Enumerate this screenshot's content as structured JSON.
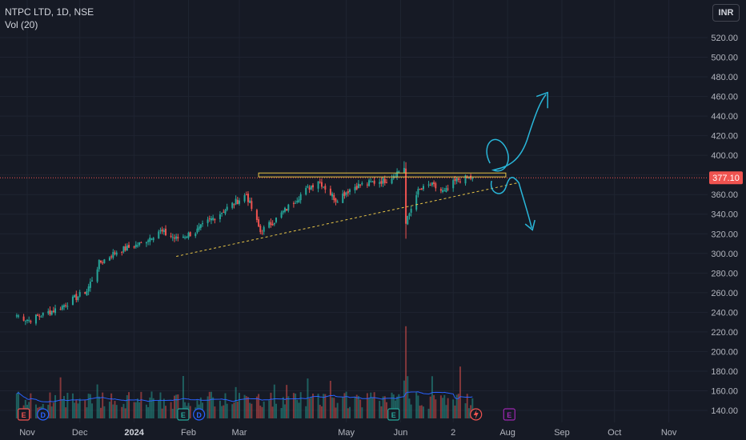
{
  "header": {
    "symbol": "NTPC LTD, 1D, NSE",
    "indicator": "Vol (20)"
  },
  "currency": "INR",
  "last_price": "377.10",
  "colors": {
    "background": "#161a25",
    "grid": "#1f2431",
    "up": "#26a69a",
    "down": "#ef5350",
    "resistance_box": "#e8c547",
    "trendline": "#e8c547",
    "arrows": "#29b6d9",
    "price_line": "#ef5350",
    "volume_ma": "#2962ff"
  },
  "icons": [
    "currency-settings-icon",
    "earnings-e-icon",
    "dividend-d-icon",
    "flash-event-icon"
  ],
  "chart_data": {
    "type": "candlestick",
    "title": "NTPC LTD, 1D, NSE",
    "y_axis": {
      "ticks": [
        "520.00",
        "500.00",
        "480.00",
        "460.00",
        "440.00",
        "420.00",
        "400.00",
        "380.00",
        "360.00",
        "340.00",
        "320.00",
        "300.00",
        "280.00",
        "260.00",
        "240.00",
        "220.00",
        "200.00",
        "180.00",
        "160.00",
        "140.00"
      ],
      "range": [
        135,
        540
      ]
    },
    "x_axis": {
      "ticks": [
        "Nov",
        "Dec",
        "2024",
        "Feb",
        "Mar",
        "May",
        "Jun",
        "2",
        "Aug",
        "Sep",
        "Oct",
        "Nov"
      ],
      "bold_ticks": [
        "2024"
      ]
    },
    "key_points": [
      {
        "date": "Oct 26 2023",
        "close": 237
      },
      {
        "date": "Nov 2 2023",
        "close": 232
      },
      {
        "date": "Nov 20 2023",
        "close": 245
      },
      {
        "date": "Dec 5 2023",
        "close": 262
      },
      {
        "date": "Dec 12 2023",
        "close": 290
      },
      {
        "date": "Dec 22 2023",
        "close": 302
      },
      {
        "date": "Jan 5 2024",
        "close": 310
      },
      {
        "date": "Jan 15 2024",
        "close": 323
      },
      {
        "date": "Jan 25 2024",
        "close": 315
      },
      {
        "date": "Feb 5 2024",
        "close": 322
      },
      {
        "date": "Feb 12 2024",
        "close": 332
      },
      {
        "date": "Feb 22 2024",
        "close": 345
      },
      {
        "date": "Mar 5 2024",
        "close": 360
      },
      {
        "date": "Mar 13 2024",
        "close": 322
      },
      {
        "date": "Mar 22 2024",
        "close": 335
      },
      {
        "date": "Apr 5 2024",
        "close": 360
      },
      {
        "date": "Apr 15 2024",
        "close": 375
      },
      {
        "date": "Apr 25 2024",
        "close": 355
      },
      {
        "date": "May 5 2024",
        "close": 368
      },
      {
        "date": "May 15 2024",
        "close": 372
      },
      {
        "date": "May 24 2024",
        "close": 375
      },
      {
        "date": "Jun 3 2024",
        "close": 388
      },
      {
        "date": "Jun 4 2024",
        "close": 330
      },
      {
        "date": "Jun 10 2024",
        "close": 362
      },
      {
        "date": "Jun 18 2024",
        "close": 370
      },
      {
        "date": "Jun 26 2024",
        "close": 362
      },
      {
        "date": "Jul 3 2024",
        "close": 375
      },
      {
        "date": "Jul 12 2024",
        "close": 377.1
      }
    ],
    "annotations": {
      "resistance_zone": {
        "from": "Mar 12 2024",
        "to": "Jul 31 2024",
        "y_low": 378,
        "y_high": 382
      },
      "trendline": {
        "from": {
          "date": "Jan 25 2024",
          "y": 297
        },
        "to": {
          "date": "Aug 7 2024",
          "y": 372
        }
      },
      "bull_path": {
        "description_points": [
          [
            "Jul 22 2024",
            392
          ],
          [
            "Aug 8 2024",
            460
          ]
        ]
      },
      "bear_path": {
        "description_points": [
          [
            "Jul 22 2024",
            372
          ],
          [
            "Aug 5 2024",
            325
          ]
        ]
      }
    },
    "volume": {
      "name": "Vol (20)",
      "max_visible_spike_date": "Jun 4 2024"
    }
  }
}
